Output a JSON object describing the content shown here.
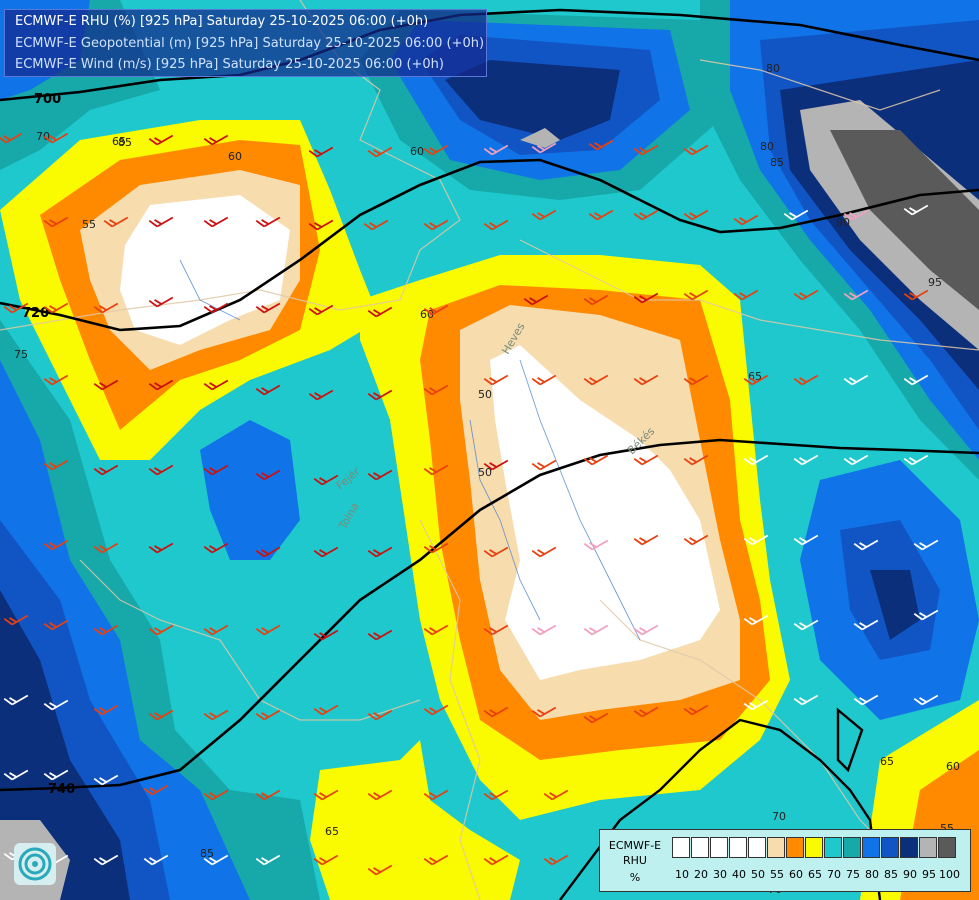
{
  "title_lines": [
    "ECMWF-E RHU (%) [925 hPa] Saturday 25-10-2025 06:00 (+0h)",
    "ECMWF-E Geopotential (m) [925 hPa] Saturday 25-10-2025 06:00 (+0h)",
    "ECMWF-E Wind (m/s) [925 hPa] Saturday 25-10-2025 06:00 (+0h)"
  ],
  "legend": {
    "caption": [
      "ECMWF-E",
      "RHU",
      "%"
    ],
    "ticks": [
      "10",
      "20",
      "30",
      "40",
      "50",
      "55",
      "60",
      "65",
      "70",
      "75",
      "80",
      "85",
      "90",
      "95",
      "100"
    ],
    "colors": [
      "#ffffff",
      "#ffffff",
      "#ffffff",
      "#ffffff",
      "#ffffff",
      "#f7dcae",
      "#ff8a00",
      "#fafa00",
      "#1ec8cc",
      "#17a8aa",
      "#1173e8",
      "#1155c4",
      "#0c2f7c",
      "#b4b4b4",
      "#5a5a5a"
    ]
  },
  "geopotential_labels": [
    "700",
    "720",
    "740"
  ],
  "rhu_contour_labels": [
    "85",
    "60",
    "55",
    "70",
    "75",
    "60",
    "80",
    "60",
    "50",
    "65",
    "65",
    "55",
    "60",
    "65",
    "50",
    "80",
    "85",
    "90",
    "95",
    "65",
    "70",
    "70",
    "60",
    "85"
  ],
  "place_labels": [
    "Heves",
    "Tolna",
    "Fejér",
    "Békés"
  ],
  "colors": {
    "rhu_lt_55": "#ffffff",
    "rhu_55": "#f7dcae",
    "rhu_60": "#ff8a00",
    "rhu_65": "#fafa00",
    "rhu_70": "#1ec8cc",
    "rhu_75": "#17a8aa",
    "rhu_80": "#1173e8",
    "rhu_85": "#1155c4",
    "rhu_90": "#0c2f7c",
    "rhu_95": "#b4b4b4",
    "rhu_100": "#5a5a5a",
    "geopotential_line": "#000000",
    "borders": "#e0c8a8",
    "wind_barbs": [
      "#e84010",
      "#cc1010",
      "#f0a0c0",
      "#ffffff"
    ]
  },
  "icons": [
    "ecmwf-logo-icon",
    "wind-barb-icon"
  ]
}
